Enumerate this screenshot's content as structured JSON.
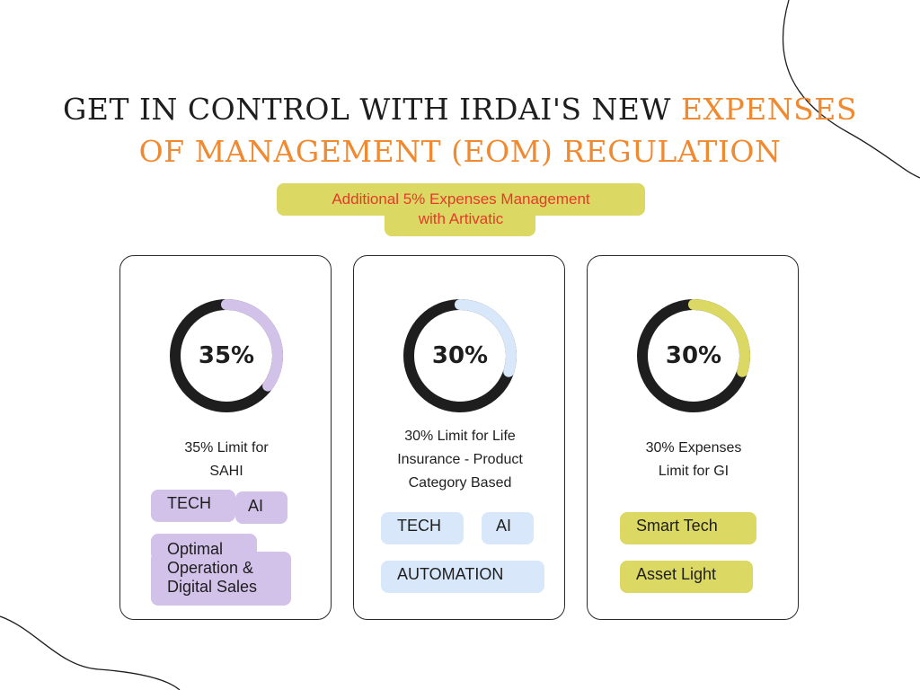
{
  "title": {
    "line1_dark": "GET IN CONTROL  WITH IRDAI'S NEW ",
    "line1_accent": "EXPENSES",
    "line2_accent": "OF MANAGEMENT (EOM) REGULATION"
  },
  "callout": {
    "line1": "Additional 5% Expenses Management",
    "line2": "with Artivatic"
  },
  "cards": [
    {
      "percent_label": "35%",
      "percent": 35,
      "accent": "#d2c2ea",
      "caption_lines": [
        "35% Limit for",
        "SAHI"
      ],
      "tags": [
        "TECH",
        "AI",
        "Optimal",
        "Operation &",
        "Digital Sales"
      ]
    },
    {
      "percent_label": "30%",
      "percent": 30,
      "accent": "#d8e8fa",
      "caption_lines": [
        "30% Limit for Life",
        "Insurance - Product",
        "Category Based"
      ],
      "tags": [
        "TECH",
        "AI",
        "AUTOMATION"
      ]
    },
    {
      "percent_label": "30%",
      "percent": 30,
      "accent": "#dcd864",
      "caption_lines": [
        "30% Expenses",
        "Limit for GI"
      ],
      "tags": [
        "Smart Tech",
        "Asset Light"
      ]
    }
  ],
  "colors": {
    "title_accent": "#f0892f",
    "callout_text": "#e53a2a",
    "callout_bg": "#dcd864",
    "ring": "#1e1e1e"
  }
}
